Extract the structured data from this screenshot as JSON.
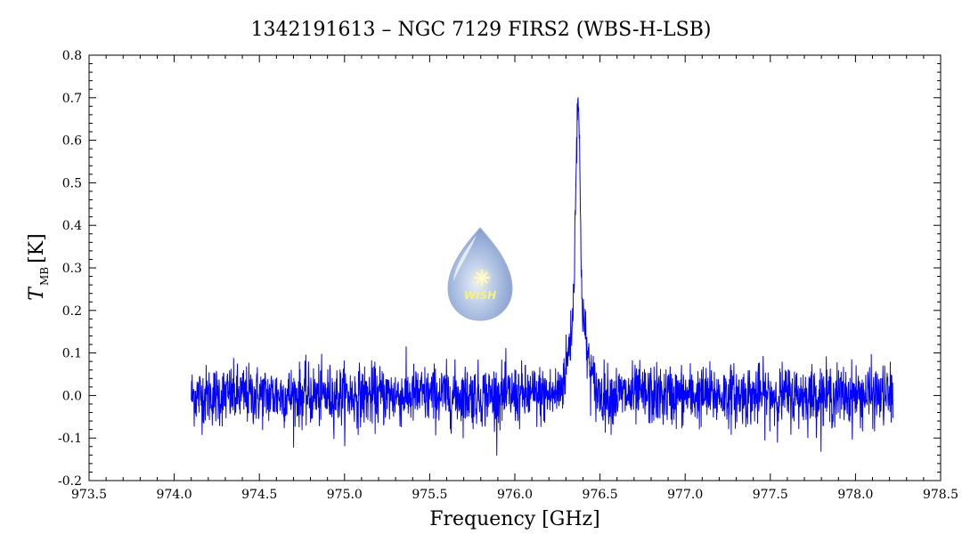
{
  "chart_data": {
    "type": "line",
    "title": "1342191613 – NGC 7129 FIRS2 (WBS-H-LSB)",
    "xlabel": "Frequency [GHz]",
    "ylabel_main": "T",
    "ylabel_sub": "MB",
    "ylabel_unit": "[K]",
    "xlim": [
      973.5,
      978.5
    ],
    "ylim": [
      -0.2,
      0.8
    ],
    "x_ticks": [
      "973.5",
      "974.0",
      "974.5",
      "975.0",
      "975.5",
      "976.0",
      "976.5",
      "977.0",
      "977.5",
      "978.0",
      "978.5"
    ],
    "y_ticks": [
      "-0.2",
      "-0.1",
      "0.0",
      "0.1",
      "0.2",
      "0.3",
      "0.4",
      "0.5",
      "0.6",
      "0.7",
      "0.8"
    ],
    "grid": false,
    "series": [
      {
        "color": "#0000ff",
        "x_start": 974.1,
        "x_end": 978.22,
        "noise_rms": 0.035,
        "line_center": 976.37,
        "peak_value": 0.7,
        "wing_amplitude": 0.22,
        "wing_width": 0.045,
        "core_width": 0.012
      }
    ],
    "logo": {
      "label": "WISH",
      "accent": "#f4f27a",
      "color_light": "#e8eef8",
      "color_dark": "#7c96c8"
    }
  }
}
